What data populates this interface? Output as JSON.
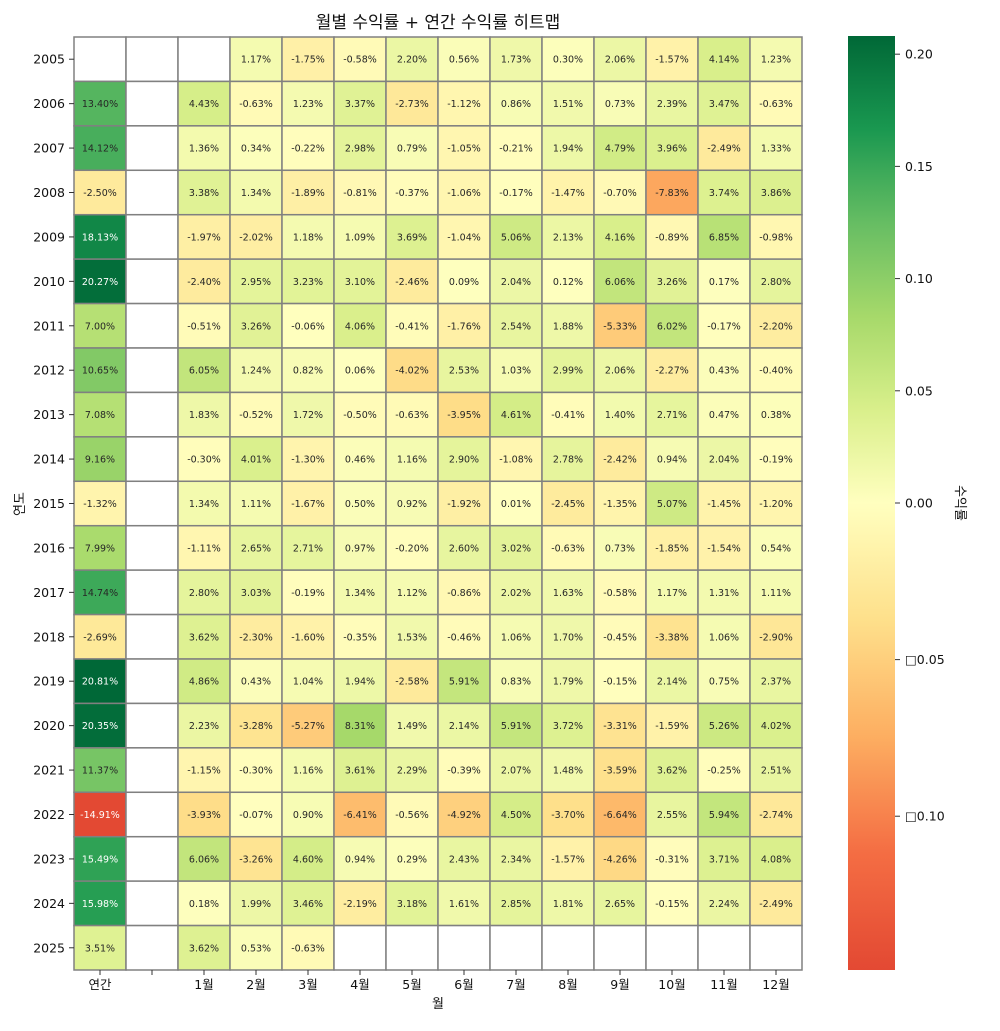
{
  "chart_data": {
    "type": "heatmap",
    "title": "월별 수익률 + 연간 수익률 히트맵",
    "xlabel": "월",
    "ylabel": "연도",
    "colorbar_label": "수익률",
    "columns": [
      "연간",
      "",
      "1월",
      "2월",
      "3월",
      "4월",
      "5월",
      "6월",
      "7월",
      "8월",
      "9월",
      "10월",
      "11월",
      "12월"
    ],
    "rows": [
      "2005",
      "2006",
      "2007",
      "2008",
      "2009",
      "2010",
      "2011",
      "2012",
      "2013",
      "2014",
      "2015",
      "2016",
      "2017",
      "2018",
      "2019",
      "2020",
      "2021",
      "2022",
      "2023",
      "2024",
      "2025"
    ],
    "values": [
      [
        null,
        null,
        null,
        0.0117,
        -0.0175,
        -0.0058,
        0.022,
        0.0056,
        0.0173,
        0.003,
        0.0206,
        -0.0157,
        0.0414,
        0.0123
      ],
      [
        0.134,
        null,
        0.0443,
        -0.0063,
        0.0123,
        0.0337,
        -0.0273,
        -0.0112,
        0.0086,
        0.0151,
        0.0073,
        0.0239,
        0.0347,
        -0.0063
      ],
      [
        0.1412,
        null,
        0.0136,
        0.0034,
        -0.0022,
        0.0298,
        0.0079,
        -0.0105,
        -0.0021,
        0.0194,
        0.0479,
        0.0396,
        -0.0249,
        0.0133
      ],
      [
        -0.025,
        null,
        0.0338,
        0.0134,
        -0.0189,
        -0.0081,
        -0.0037,
        -0.0106,
        -0.0017,
        -0.0147,
        -0.007,
        -0.0783,
        0.0374,
        0.0386
      ],
      [
        0.1813,
        null,
        -0.0197,
        -0.0202,
        0.0118,
        0.0109,
        0.0369,
        -0.0104,
        0.0506,
        0.0213,
        0.0416,
        -0.0089,
        0.0685,
        -0.0098
      ],
      [
        0.2027,
        null,
        -0.024,
        0.0295,
        0.0323,
        0.031,
        -0.0246,
        0.0009,
        0.0204,
        0.0012,
        0.0606,
        0.0326,
        0.0017,
        0.028
      ],
      [
        0.07,
        null,
        -0.0051,
        0.0326,
        -0.0006,
        0.0406,
        -0.0041,
        -0.0176,
        0.0254,
        0.0188,
        -0.0533,
        0.0602,
        -0.0017,
        -0.022
      ],
      [
        0.1065,
        null,
        0.0605,
        0.0124,
        0.0082,
        0.0006,
        -0.0402,
        0.0253,
        0.0103,
        0.0299,
        0.0206,
        -0.0227,
        0.0043,
        -0.004
      ],
      [
        0.0708,
        null,
        0.0183,
        -0.0052,
        0.0172,
        -0.005,
        -0.0063,
        -0.0395,
        0.0461,
        -0.0041,
        0.014,
        0.0271,
        0.0047,
        0.0038
      ],
      [
        0.0916,
        null,
        -0.003,
        0.0401,
        -0.013,
        0.0046,
        0.0116,
        0.029,
        -0.0108,
        0.0278,
        -0.0242,
        0.0094,
        0.0204,
        -0.0019
      ],
      [
        -0.0132,
        null,
        0.0134,
        0.0111,
        -0.0167,
        0.005,
        0.0092,
        -0.0192,
        0.0001,
        -0.0245,
        -0.0135,
        0.0507,
        -0.0145,
        -0.012
      ],
      [
        0.0799,
        null,
        -0.0111,
        0.0265,
        0.0271,
        0.0097,
        -0.002,
        0.026,
        0.0302,
        -0.0063,
        0.0073,
        -0.0185,
        -0.0154,
        0.0054
      ],
      [
        0.1474,
        null,
        0.028,
        0.0303,
        -0.0019,
        0.0134,
        0.0112,
        -0.0086,
        0.0202,
        0.0163,
        -0.0058,
        0.0117,
        0.0131,
        0.0111
      ],
      [
        -0.0269,
        null,
        0.0362,
        -0.023,
        -0.016,
        -0.0035,
        0.0153,
        -0.0046,
        0.0106,
        0.017,
        -0.0045,
        -0.0338,
        0.0106,
        -0.029
      ],
      [
        0.2081,
        null,
        0.0486,
        0.0043,
        0.0104,
        0.0194,
        -0.0258,
        0.0591,
        0.0083,
        0.0179,
        -0.0015,
        0.0214,
        0.0075,
        0.0237
      ],
      [
        0.2035,
        null,
        0.0223,
        -0.0328,
        -0.0527,
        0.0831,
        0.0149,
        0.0214,
        0.0591,
        0.0372,
        -0.0331,
        -0.0159,
        0.0526,
        0.0402
      ],
      [
        0.1137,
        null,
        -0.0115,
        -0.003,
        0.0116,
        0.0361,
        0.0229,
        -0.0039,
        0.0207,
        0.0148,
        -0.0359,
        0.0362,
        -0.0025,
        0.0251
      ],
      [
        -0.1491,
        null,
        -0.0393,
        -0.0007,
        0.009,
        -0.0641,
        -0.0056,
        -0.0492,
        0.045,
        -0.037,
        -0.0664,
        0.0255,
        0.0594,
        -0.0274
      ],
      [
        0.1549,
        null,
        0.0606,
        -0.0326,
        0.046,
        0.0094,
        0.0029,
        0.0243,
        0.0234,
        -0.0157,
        -0.0426,
        -0.0031,
        0.0371,
        0.0408
      ],
      [
        0.1598,
        null,
        0.0018,
        0.0199,
        0.0346,
        -0.0219,
        0.0318,
        0.0161,
        0.0285,
        0.0181,
        0.0265,
        -0.0015,
        0.0224,
        -0.0249
      ],
      [
        0.0351,
        null,
        0.0362,
        0.0053,
        -0.0063,
        null,
        null,
        null,
        null,
        null,
        null,
        null,
        null,
        null
      ]
    ],
    "value_format": "percent_2dp",
    "color_scale": {
      "colormap": "RdYlGn",
      "center": 0,
      "vmin": -0.1491,
      "vmax": 0.2081,
      "stops": [
        "#e34933",
        "#f46d43",
        "#fdae61",
        "#fee08b",
        "#ffffbf",
        "#d9ef8b",
        "#a6d96a",
        "#66bd63",
        "#1a9850",
        "#006837"
      ]
    },
    "colorbar_ticks": [
      0.2,
      0.15,
      0.1,
      0.05,
      0.0,
      -0.05,
      -0.1
    ],
    "colorbar_tick_labels": [
      "0.20",
      "0.15",
      "0.10",
      "0.05",
      "0.00",
      "□0.05",
      "□0.10"
    ],
    "grid": true,
    "cell_border_color": "#808080",
    "missing_cell_color": "#ffffff"
  }
}
